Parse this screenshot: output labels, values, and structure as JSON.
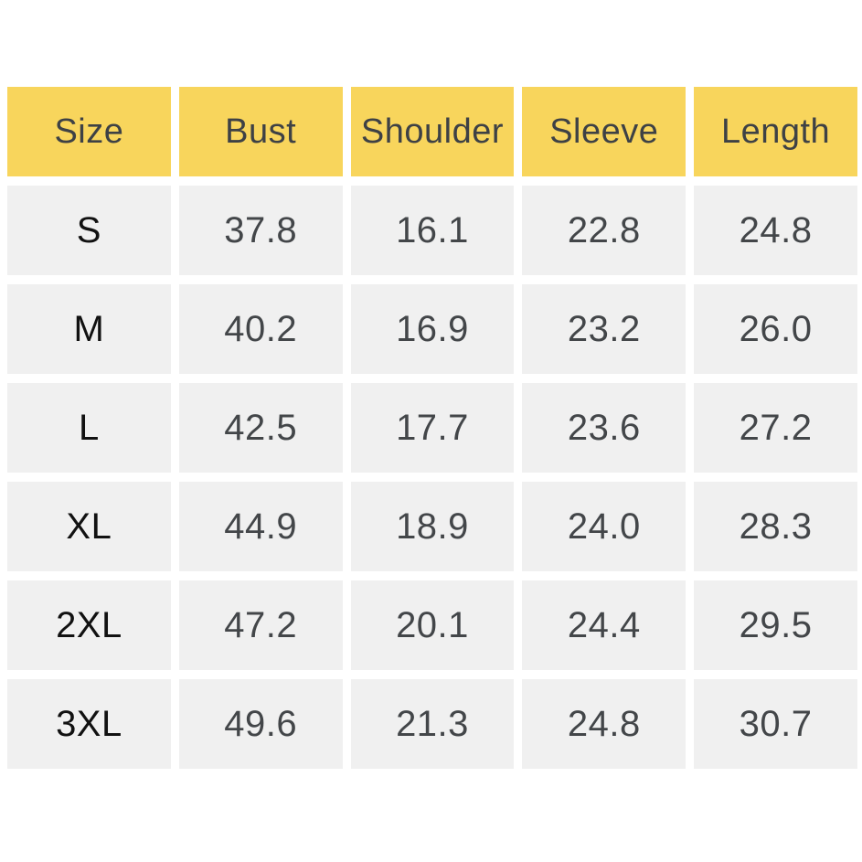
{
  "chart_data": {
    "type": "table",
    "columns": [
      "Size",
      "Bust",
      "Shoulder",
      "Sleeve",
      "Length"
    ],
    "rows": [
      {
        "size": "S",
        "values": [
          "37.8",
          "16.1",
          "22.8",
          "24.8"
        ]
      },
      {
        "size": "M",
        "values": [
          "40.2",
          "16.9",
          "23.2",
          "26.0"
        ]
      },
      {
        "size": "L",
        "values": [
          "42.5",
          "17.7",
          "23.6",
          "27.2"
        ]
      },
      {
        "size": "XL",
        "values": [
          "44.9",
          "18.9",
          "24.0",
          "28.3"
        ]
      },
      {
        "size": "2XL",
        "values": [
          "47.2",
          "20.1",
          "24.4",
          "29.5"
        ]
      },
      {
        "size": "3XL",
        "values": [
          "49.6",
          "21.3",
          "24.8",
          "30.7"
        ]
      }
    ],
    "layout": {
      "header_position": "top",
      "grid": "white-gutters-between-cells"
    }
  },
  "colors": {
    "page_bg": "#FFFFFF",
    "header_bg": "#F8D55C",
    "row_bg": "#F0F0F0",
    "header_text": "#3E4145",
    "value_text": "#434649",
    "size_text": "#111111"
  }
}
